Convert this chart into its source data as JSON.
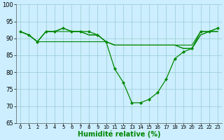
{
  "background_color": "#cceeff",
  "grid_color": "#99cccc",
  "line_color": "#008800",
  "xlabel": "Humidité relative (%)",
  "xlabel_fontsize": 7,
  "ylim": [
    65,
    100
  ],
  "xlim": [
    -0.5,
    23.5
  ],
  "yticks": [
    65,
    70,
    75,
    80,
    85,
    90,
    95,
    100
  ],
  "xticks": [
    0,
    1,
    2,
    3,
    4,
    5,
    6,
    7,
    8,
    9,
    10,
    11,
    12,
    13,
    14,
    15,
    16,
    17,
    18,
    19,
    20,
    21,
    22,
    23
  ],
  "series": [
    {
      "x": [
        0,
        1,
        2,
        3,
        4,
        5,
        6,
        7,
        8,
        9,
        10,
        11,
        12,
        13,
        14,
        15,
        16,
        17,
        18,
        19,
        20,
        21,
        22,
        23
      ],
      "y": [
        92,
        91,
        89,
        92,
        92,
        93,
        92,
        92,
        92,
        91,
        89,
        81,
        77,
        71,
        71,
        72,
        74,
        78,
        84,
        86,
        87,
        92,
        92,
        93
      ],
      "marker": "D",
      "markersize": 2.0,
      "linewidth": 0.9
    },
    {
      "x": [
        0,
        1,
        2,
        3,
        4,
        5,
        6,
        7,
        8,
        9,
        10,
        11,
        12,
        13,
        14,
        15,
        16,
        17,
        18,
        19,
        20,
        21,
        22,
        23
      ],
      "y": [
        92,
        91,
        89,
        92,
        92,
        93,
        92,
        92,
        91,
        91,
        89,
        88,
        88,
        88,
        88,
        88,
        88,
        88,
        88,
        88,
        88,
        92,
        92,
        93
      ],
      "marker": null,
      "markersize": 0,
      "linewidth": 0.8
    },
    {
      "x": [
        0,
        1,
        2,
        3,
        4,
        5,
        6,
        7,
        8,
        9,
        10,
        11,
        12,
        13,
        14,
        15,
        16,
        17,
        18,
        19,
        20,
        21,
        22,
        23
      ],
      "y": [
        92,
        91,
        89,
        92,
        92,
        92,
        92,
        92,
        91,
        91,
        89,
        88,
        88,
        88,
        88,
        88,
        88,
        88,
        88,
        87,
        87,
        91,
        92,
        92
      ],
      "marker": null,
      "markersize": 0,
      "linewidth": 0.8
    },
    {
      "x": [
        0,
        1,
        2,
        3,
        4,
        5,
        6,
        7,
        8,
        9,
        10,
        11,
        12,
        13,
        14,
        15,
        16,
        17,
        18,
        19,
        20,
        21,
        22,
        23
      ],
      "y": [
        92,
        91,
        89,
        89,
        89,
        89,
        89,
        89,
        89,
        89,
        89,
        88,
        88,
        88,
        88,
        88,
        88,
        88,
        88,
        87,
        87,
        91,
        92,
        92
      ],
      "marker": null,
      "markersize": 0,
      "linewidth": 0.8
    }
  ],
  "spine_color": "#555555",
  "tick_fontsize": 5,
  "figwidth": 3.2,
  "figheight": 2.0,
  "dpi": 100
}
